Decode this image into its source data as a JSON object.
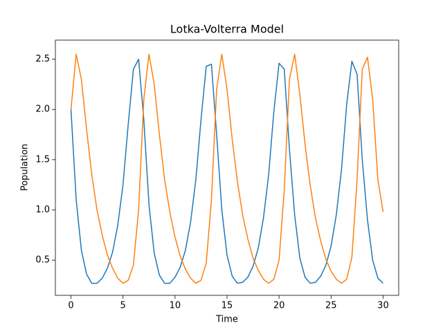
{
  "chart_data": {
    "type": "line",
    "title": "Lotka-Volterra Model",
    "x_label": "Time",
    "y_label": "Population",
    "x": [
      0,
      0.5,
      1,
      1.5,
      2,
      2.5,
      3,
      3.5,
      4,
      4.5,
      5,
      5.5,
      6,
      6.5,
      7,
      7.5,
      8,
      8.5,
      9,
      9.5,
      10,
      10.5,
      11,
      11.5,
      12,
      12.5,
      13,
      13.5,
      14,
      14.5,
      15,
      15.5,
      16,
      16.5,
      17,
      17.5,
      18,
      18.5,
      19,
      19.5,
      20,
      20.5,
      21,
      21.5,
      22,
      22.5,
      23,
      23.5,
      24,
      24.5,
      25,
      25.5,
      26,
      26.5,
      27,
      27.5,
      28,
      28.5,
      29,
      29.5,
      30
    ],
    "series": [
      {
        "color": "#1f77b4",
        "values": [
          2.0,
          1.1,
          0.6,
          0.36,
          0.27,
          0.27,
          0.32,
          0.42,
          0.58,
          0.85,
          1.25,
          1.85,
          2.4,
          2.5,
          1.9,
          1.05,
          0.57,
          0.35,
          0.27,
          0.27,
          0.33,
          0.43,
          0.6,
          0.88,
          1.3,
          1.9,
          2.43,
          2.45,
          1.75,
          1.0,
          0.55,
          0.34,
          0.27,
          0.28,
          0.33,
          0.44,
          0.62,
          0.92,
          1.35,
          1.98,
          2.46,
          2.4,
          1.6,
          0.95,
          0.52,
          0.33,
          0.27,
          0.28,
          0.34,
          0.45,
          0.64,
          0.95,
          1.4,
          2.05,
          2.48,
          2.35,
          1.5,
          0.9,
          0.5,
          0.32,
          0.27
        ]
      },
      {
        "color": "#ff7f0e",
        "values": [
          2.0,
          2.55,
          2.3,
          1.8,
          1.35,
          1.0,
          0.75,
          0.55,
          0.42,
          0.32,
          0.27,
          0.3,
          0.45,
          1.0,
          2.1,
          2.55,
          2.25,
          1.75,
          1.3,
          0.98,
          0.73,
          0.54,
          0.41,
          0.32,
          0.27,
          0.3,
          0.47,
          1.1,
          2.2,
          2.55,
          2.2,
          1.7,
          1.28,
          0.95,
          0.71,
          0.52,
          0.4,
          0.31,
          0.27,
          0.31,
          0.5,
          1.2,
          2.3,
          2.55,
          2.15,
          1.65,
          1.24,
          0.92,
          0.69,
          0.51,
          0.39,
          0.31,
          0.27,
          0.31,
          0.53,
          1.3,
          2.4,
          2.52,
          2.1,
          1.3,
          0.98
        ]
      }
    ],
    "xlim": [
      -1.5,
      31.5
    ],
    "ylim": [
      0.15,
      2.69
    ],
    "xticks": [
      0,
      5,
      10,
      15,
      20,
      25,
      30
    ],
    "yticks": [
      0.5,
      {
        "value": 1,
        "label": "1.0"
      },
      1.5,
      {
        "value": 2,
        "label": "2.0"
      },
      2.5
    ]
  }
}
